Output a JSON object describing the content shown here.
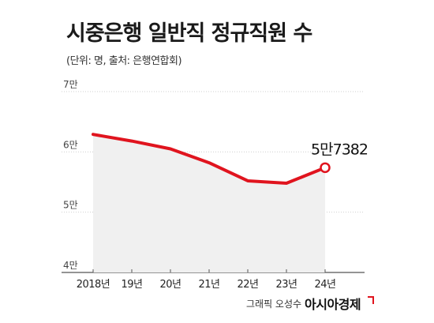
{
  "chart_data": {
    "type": "area",
    "title": "시중은행 일반직 정규직원 수",
    "subtitle": "(단위: 명, 출처: 은행연합회)",
    "categories": [
      "2018년",
      "19년",
      "20년",
      "21년",
      "22년",
      "23년",
      "24년"
    ],
    "values": [
      62900,
      61800,
      60500,
      58200,
      55200,
      54800,
      57382
    ],
    "y_ticks": [
      {
        "value": 40000,
        "label": "4만"
      },
      {
        "value": 50000,
        "label": "5만"
      },
      {
        "value": 60000,
        "label": "6만"
      },
      {
        "value": 70000,
        "label": "7만"
      }
    ],
    "ylim": [
      40000,
      70000
    ],
    "last_point_label": "5만7382",
    "line_color": "#e0141e",
    "area_color": "#f0f0f0",
    "grid": true
  },
  "footer": {
    "credit": "그래픽 오성수",
    "brand": "아시아경제"
  }
}
